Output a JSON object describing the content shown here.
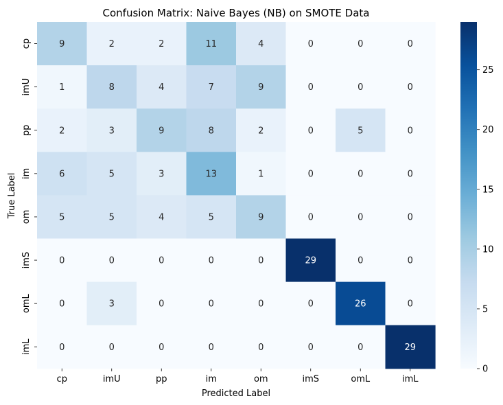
{
  "chart_data": {
    "type": "heatmap",
    "title": "Confusion Matrix: Naive Bayes (NB) on SMOTE Data",
    "xlabel": "Predicted Label",
    "ylabel": "True Label",
    "x_categories": [
      "cp",
      "imU",
      "pp",
      "im",
      "om",
      "imS",
      "omL",
      "imL"
    ],
    "y_categories": [
      "cp",
      "imU",
      "pp",
      "im",
      "om",
      "imS",
      "omL",
      "imL"
    ],
    "values": [
      [
        9,
        2,
        2,
        11,
        4,
        0,
        0,
        0
      ],
      [
        1,
        8,
        4,
        7,
        9,
        0,
        0,
        0
      ],
      [
        2,
        3,
        9,
        8,
        2,
        0,
        5,
        0
      ],
      [
        6,
        5,
        3,
        13,
        1,
        0,
        0,
        0
      ],
      [
        5,
        5,
        4,
        5,
        9,
        0,
        0,
        0
      ],
      [
        0,
        0,
        0,
        0,
        0,
        29,
        0,
        0
      ],
      [
        0,
        3,
        0,
        0,
        0,
        0,
        26,
        0
      ],
      [
        0,
        0,
        0,
        0,
        0,
        0,
        0,
        29
      ]
    ],
    "colormap": "Blues",
    "vmin": 0,
    "vmax": 29,
    "colorbar_ticks": [
      0,
      5,
      10,
      15,
      20,
      25
    ],
    "annot_dark_color": "#262626",
    "annot_light_color": "#ffffff"
  }
}
